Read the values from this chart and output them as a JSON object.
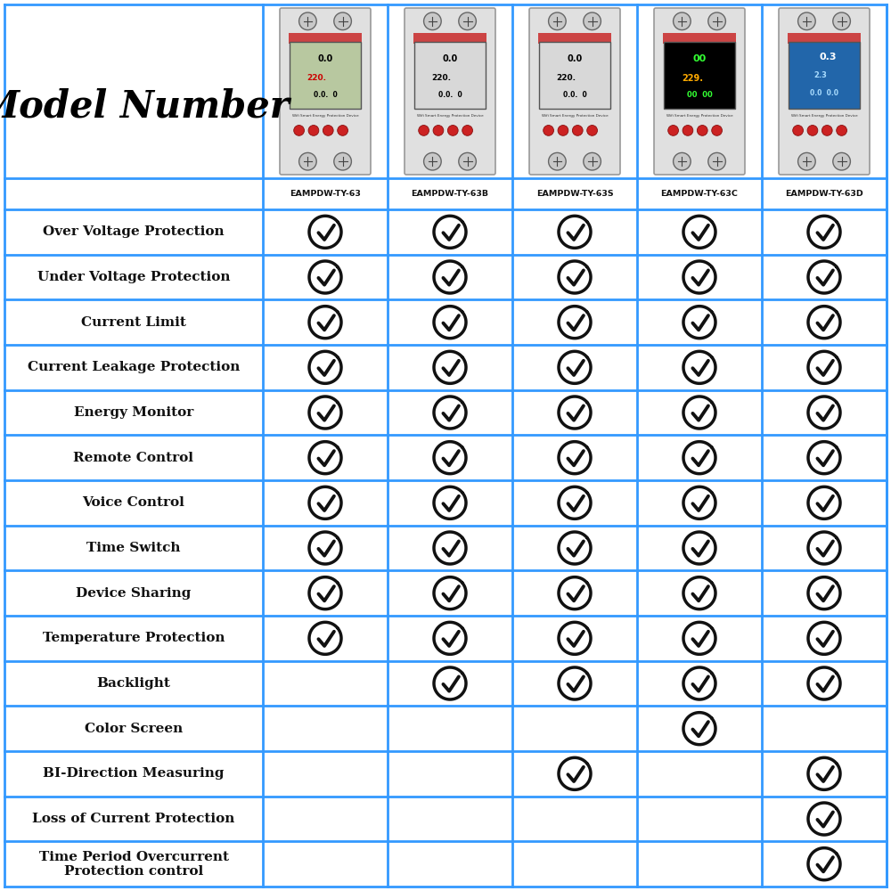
{
  "title": "Model Number",
  "models": [
    "EAMPDW-TY-63",
    "EAMPDW-TY-63B",
    "EAMPDW-TY-63S",
    "EAMPDW-TY-63C",
    "EAMPDW-TY-63D"
  ],
  "features": [
    "Over Voltage Protection",
    "Under Voltage Protection",
    "Current Limit",
    "Current Leakage Protection",
    "Energy Monitor",
    "Remote Control",
    "Voice Control",
    "Time Switch",
    "Device Sharing",
    "Temperature Protection",
    "Backlight",
    "Color Screen",
    "BI-Direction Measuring",
    "Loss of Current Protection",
    "Time Period Overcurrent\nProtection control"
  ],
  "checkmarks": [
    [
      1,
      1,
      1,
      1,
      1
    ],
    [
      1,
      1,
      1,
      1,
      1
    ],
    [
      1,
      1,
      1,
      1,
      1
    ],
    [
      1,
      1,
      1,
      1,
      1
    ],
    [
      1,
      1,
      1,
      1,
      1
    ],
    [
      1,
      1,
      1,
      1,
      1
    ],
    [
      1,
      1,
      1,
      1,
      1
    ],
    [
      1,
      1,
      1,
      1,
      1
    ],
    [
      1,
      1,
      1,
      1,
      1
    ],
    [
      1,
      1,
      1,
      1,
      1
    ],
    [
      0,
      1,
      1,
      1,
      1
    ],
    [
      0,
      0,
      0,
      1,
      0
    ],
    [
      0,
      0,
      1,
      0,
      1
    ],
    [
      0,
      0,
      0,
      0,
      1
    ],
    [
      0,
      0,
      0,
      0,
      1
    ]
  ],
  "grid_color": "#3399ff",
  "title_color": "#000000",
  "figsize": [
    10,
    10
  ],
  "dpi": 100,
  "screen_colors": [
    "#b8c8a0",
    "#d8d8d8",
    "#d8d8d8",
    "#000000",
    "#2266aa"
  ],
  "screen_text_colors": [
    "#000000",
    "#000000",
    "#000000",
    "#33ff33",
    "#ffffff"
  ],
  "screen_text2_colors": [
    "#cc0000",
    "#000000",
    "#000000",
    "#ff4400",
    "#aaccff"
  ]
}
